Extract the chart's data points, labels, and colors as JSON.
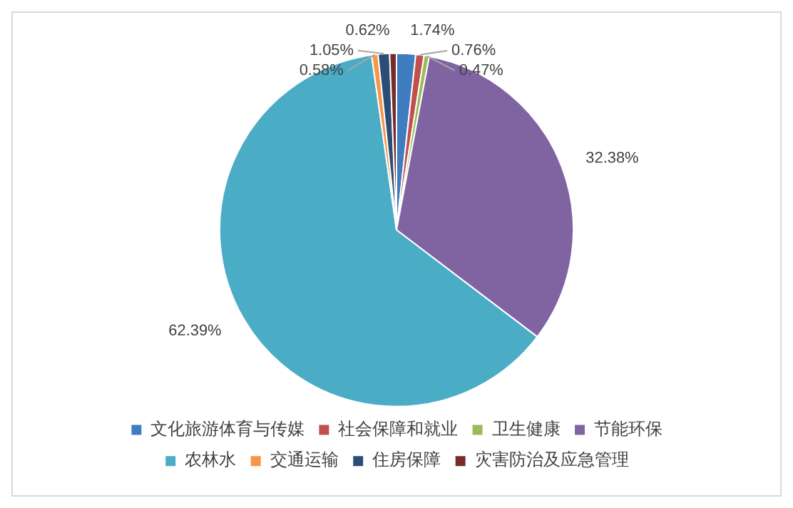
{
  "chart_data": {
    "type": "pie",
    "categories": [
      "文化旅游体育与传媒",
      "社会保障和就业",
      "卫生健康",
      "节能环保",
      "农林水",
      "交通运输",
      "住房保障",
      "灾害防治及应急管理"
    ],
    "values": [
      1.74,
      0.76,
      0.47,
      32.38,
      62.39,
      0.58,
      1.05,
      0.62
    ],
    "colors": [
      "#3f7cc0",
      "#c0504d",
      "#9bbb59",
      "#8064a2",
      "#4bacc6",
      "#f79646",
      "#2c4d75",
      "#772c2a"
    ],
    "value_labels": [
      "1.74%",
      "0.76%",
      "0.47%",
      "32.38%",
      "62.39%",
      "0.58%",
      "1.05%",
      "0.62%"
    ],
    "legend": "bottom"
  }
}
